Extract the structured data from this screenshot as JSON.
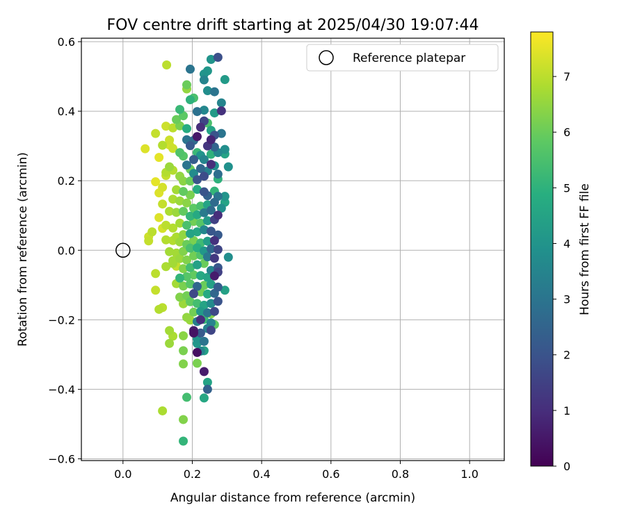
{
  "chart_data": {
    "type": "scatter",
    "title": "FOV centre drift starting at 2025/04/30 19:07:44",
    "xlabel": "Angular distance from reference (arcmin)",
    "ylabel": "Rotation from reference (arcmin)",
    "xlim": [
      -0.12,
      1.1
    ],
    "ylim": [
      -0.605,
      0.61
    ],
    "xticks": [
      0.0,
      0.2,
      0.4,
      0.6,
      0.8,
      1.0
    ],
    "xtick_labels": [
      "0.0",
      "0.2",
      "0.4",
      "0.6",
      "0.8",
      "1.0"
    ],
    "yticks": [
      -0.6,
      -0.4,
      -0.2,
      0.0,
      0.2,
      0.4,
      0.6
    ],
    "ytick_labels": [
      "−0.6",
      "−0.4",
      "−0.2",
      "0.0",
      "0.2",
      "0.4",
      "0.6"
    ],
    "grid": true,
    "legend": {
      "placement": "top-right",
      "entries": [
        "Reference platepar"
      ]
    },
    "reference_point": {
      "x": 0.0,
      "y": 0.0
    },
    "colorbar": {
      "label": "Hours from first FF file",
      "colormap": "viridis",
      "range": [
        0,
        7.8
      ],
      "ticks": [
        0,
        1,
        2,
        3,
        4,
        5,
        6,
        7
      ],
      "tick_labels": [
        "0",
        "1",
        "2",
        "3",
        "4",
        "5",
        "6",
        "7"
      ]
    },
    "series": [
      {
        "color_by": "hours",
        "points": [
          [
            0.126,
            0.533,
            7.0
          ],
          [
            0.064,
            0.292,
            7.4
          ],
          [
            0.104,
            0.267,
            7.5
          ],
          [
            0.094,
            0.197,
            7.5
          ],
          [
            0.104,
            0.165,
            7.4
          ],
          [
            0.114,
            0.181,
            7.3
          ],
          [
            0.124,
            0.215,
            7.1
          ],
          [
            0.134,
            0.303,
            7.3
          ],
          [
            0.144,
            0.293,
            7.2
          ],
          [
            0.094,
            0.336,
            7.1
          ],
          [
            0.124,
            0.357,
            7.2
          ],
          [
            0.144,
            0.352,
            7.0
          ],
          [
            0.114,
            0.302,
            6.9
          ],
          [
            0.134,
            0.317,
            7.2
          ],
          [
            0.104,
            0.094,
            7.4
          ],
          [
            0.114,
            0.063,
            7.3
          ],
          [
            0.084,
            0.053,
            7.0
          ],
          [
            0.074,
            0.039,
            7.2
          ],
          [
            0.074,
            0.027,
            7.1
          ],
          [
            0.124,
            0.03,
            6.9
          ],
          [
            0.094,
            -0.067,
            7.0
          ],
          [
            0.124,
            -0.047,
            6.8
          ],
          [
            0.144,
            -0.038,
            6.7
          ],
          [
            0.094,
            -0.115,
            7.1
          ],
          [
            0.114,
            -0.165,
            7.0
          ],
          [
            0.104,
            -0.17,
            6.9
          ],
          [
            0.134,
            -0.231,
            6.7
          ],
          [
            0.144,
            -0.247,
            6.8
          ],
          [
            0.134,
            -0.268,
            6.6
          ],
          [
            0.114,
            -0.462,
            6.8
          ],
          [
            0.174,
            -0.487,
            6.3
          ],
          [
            0.174,
            -0.549,
            5.1
          ],
          [
            0.184,
            -0.423,
            5.4
          ],
          [
            0.174,
            -0.327,
            6.3
          ],
          [
            0.174,
            -0.289,
            6.2
          ],
          [
            0.174,
            -0.246,
            6.4
          ],
          [
            0.214,
            -0.325,
            6.2
          ],
          [
            0.234,
            -0.349,
            0.6
          ],
          [
            0.234,
            -0.425,
            4.6
          ],
          [
            0.244,
            -0.4,
            2.4
          ],
          [
            0.244,
            -0.38,
            4.5
          ],
          [
            0.214,
            -0.255,
            4.0
          ],
          [
            0.224,
            -0.29,
            3.5
          ],
          [
            0.204,
            -0.238,
            0.4
          ],
          [
            0.224,
            -0.2,
            1.0
          ],
          [
            0.254,
            -0.183,
            6.3
          ],
          [
            0.264,
            -0.214,
            5.8
          ],
          [
            0.234,
            -0.262,
            3.0
          ],
          [
            0.294,
            -0.115,
            4.4
          ],
          [
            0.304,
            -0.02,
            3.8
          ],
          [
            0.274,
            -0.063,
            1.5
          ],
          [
            0.284,
            0.121,
            3.8
          ],
          [
            0.304,
            0.24,
            3.9
          ],
          [
            0.294,
            0.29,
            3.8
          ],
          [
            0.294,
            0.155,
            4.0
          ],
          [
            0.294,
            0.138,
            4.5
          ],
          [
            0.284,
            0.401,
            1.1
          ],
          [
            0.284,
            0.336,
            3.0
          ],
          [
            0.294,
            0.491,
            4.2
          ],
          [
            0.274,
            0.555,
            1.9
          ],
          [
            0.254,
            0.549,
            4.0
          ],
          [
            0.244,
            0.516,
            4.1
          ],
          [
            0.234,
            0.507,
            4.0
          ],
          [
            0.194,
            0.521,
            3.0
          ],
          [
            0.184,
            0.476,
            6.0
          ],
          [
            0.184,
            0.464,
            6.5
          ],
          [
            0.244,
            0.459,
            3.8
          ],
          [
            0.264,
            0.456,
            3.0
          ],
          [
            0.234,
            0.49,
            3.5
          ],
          [
            0.284,
            0.424,
            3.5
          ],
          [
            0.264,
            0.395,
            4.2
          ],
          [
            0.234,
            0.403,
            3.6
          ],
          [
            0.214,
            0.399,
            2.9
          ],
          [
            0.194,
            0.433,
            5.0
          ],
          [
            0.204,
            0.438,
            5.5
          ],
          [
            0.164,
            0.405,
            5.2
          ],
          [
            0.174,
            0.387,
            5.8
          ],
          [
            0.154,
            0.376,
            6.0
          ],
          [
            0.164,
            0.358,
            6.2
          ],
          [
            0.184,
            0.35,
            4.8
          ],
          [
            0.234,
            0.372,
            1.6
          ],
          [
            0.224,
            0.354,
            1.0
          ],
          [
            0.244,
            0.366,
            5.5
          ],
          [
            0.254,
            0.345,
            4.5
          ],
          [
            0.264,
            0.331,
            2.0
          ],
          [
            0.214,
            0.327,
            0.5
          ],
          [
            0.204,
            0.316,
            2.7
          ],
          [
            0.194,
            0.301,
            2.2
          ],
          [
            0.184,
            0.318,
            3.0
          ],
          [
            0.244,
            0.3,
            1.2
          ],
          [
            0.254,
            0.318,
            0.8
          ],
          [
            0.264,
            0.297,
            2.5
          ],
          [
            0.274,
            0.281,
            3.6
          ],
          [
            0.294,
            0.277,
            4.5
          ],
          [
            0.254,
            0.276,
            5.0
          ],
          [
            0.234,
            0.261,
            3.5
          ],
          [
            0.214,
            0.281,
            5.2
          ],
          [
            0.224,
            0.273,
            4.0
          ],
          [
            0.204,
            0.261,
            2.3
          ],
          [
            0.174,
            0.271,
            5.7
          ],
          [
            0.164,
            0.281,
            5.6
          ],
          [
            0.184,
            0.245,
            3.0
          ],
          [
            0.194,
            0.233,
            6.0
          ],
          [
            0.204,
            0.221,
            3.7
          ],
          [
            0.224,
            0.235,
            2.6
          ],
          [
            0.244,
            0.228,
            3.4
          ],
          [
            0.254,
            0.247,
            1.0
          ],
          [
            0.264,
            0.243,
            3.8
          ],
          [
            0.274,
            0.219,
            2.8
          ],
          [
            0.274,
            0.205,
            5.0
          ],
          [
            0.234,
            0.213,
            1.8
          ],
          [
            0.214,
            0.203,
            2.0
          ],
          [
            0.194,
            0.199,
            6.0
          ],
          [
            0.174,
            0.199,
            6.4
          ],
          [
            0.164,
            0.213,
            6.5
          ],
          [
            0.144,
            0.23,
            6.9
          ],
          [
            0.134,
            0.24,
            6.6
          ],
          [
            0.124,
            0.224,
            6.9
          ],
          [
            0.154,
            0.174,
            6.7
          ],
          [
            0.174,
            0.169,
            5.9
          ],
          [
            0.194,
            0.159,
            6.2
          ],
          [
            0.214,
            0.175,
            4.8
          ],
          [
            0.234,
            0.168,
            2.0
          ],
          [
            0.244,
            0.157,
            2.4
          ],
          [
            0.264,
            0.17,
            5.1
          ],
          [
            0.274,
            0.155,
            3.0
          ],
          [
            0.264,
            0.138,
            2.7
          ],
          [
            0.244,
            0.131,
            4.5
          ],
          [
            0.224,
            0.127,
            5.5
          ],
          [
            0.204,
            0.121,
            5.8
          ],
          [
            0.184,
            0.136,
            6.4
          ],
          [
            0.164,
            0.142,
            6.6
          ],
          [
            0.144,
            0.147,
            6.8
          ],
          [
            0.134,
            0.112,
            6.8
          ],
          [
            0.114,
            0.133,
            7.1
          ],
          [
            0.154,
            0.109,
            6.6
          ],
          [
            0.174,
            0.112,
            5.9
          ],
          [
            0.194,
            0.098,
            5.1
          ],
          [
            0.214,
            0.102,
            4.7
          ],
          [
            0.234,
            0.108,
            3.2
          ],
          [
            0.254,
            0.115,
            2.7
          ],
          [
            0.274,
            0.101,
            1.0
          ],
          [
            0.264,
            0.088,
            1.5
          ],
          [
            0.244,
            0.085,
            4.2
          ],
          [
            0.224,
            0.078,
            5.7
          ],
          [
            0.204,
            0.083,
            6.1
          ],
          [
            0.184,
            0.072,
            5.5
          ],
          [
            0.164,
            0.078,
            6.7
          ],
          [
            0.144,
            0.064,
            6.9
          ],
          [
            0.124,
            0.072,
            7.0
          ],
          [
            0.154,
            0.038,
            6.8
          ],
          [
            0.174,
            0.045,
            6.5
          ],
          [
            0.194,
            0.048,
            4.5
          ],
          [
            0.214,
            0.053,
            4.6
          ],
          [
            0.234,
            0.059,
            3.6
          ],
          [
            0.254,
            0.055,
            2.1
          ],
          [
            0.274,
            0.044,
            2.2
          ],
          [
            0.264,
            0.028,
            1.1
          ],
          [
            0.244,
            0.026,
            4.3
          ],
          [
            0.224,
            0.021,
            5.3
          ],
          [
            0.204,
            0.028,
            6.2
          ],
          [
            0.184,
            0.017,
            6.0
          ],
          [
            0.164,
            0.024,
            6.6
          ],
          [
            0.144,
            0.028,
            6.9
          ],
          [
            0.134,
            -0.004,
            6.7
          ],
          [
            0.154,
            -0.008,
            6.7
          ],
          [
            0.174,
            -0.003,
            6.3
          ],
          [
            0.194,
            0.006,
            5.5
          ],
          [
            0.214,
            0.007,
            4.9
          ],
          [
            0.234,
            -0.002,
            4.1
          ],
          [
            0.254,
            0.004,
            2.6
          ],
          [
            0.274,
            0.002,
            1.6
          ],
          [
            0.264,
            -0.023,
            1.3
          ],
          [
            0.244,
            -0.019,
            3.1
          ],
          [
            0.224,
            -0.014,
            5.6
          ],
          [
            0.204,
            -0.016,
            6.1
          ],
          [
            0.184,
            -0.028,
            6.3
          ],
          [
            0.164,
            -0.024,
            6.6
          ],
          [
            0.144,
            -0.03,
            6.7
          ],
          [
            0.154,
            -0.046,
            7.1
          ],
          [
            0.174,
            -0.053,
            6.3
          ],
          [
            0.194,
            -0.05,
            5.4
          ],
          [
            0.214,
            -0.042,
            4.4
          ],
          [
            0.234,
            -0.038,
            6.0
          ],
          [
            0.254,
            -0.058,
            3.5
          ],
          [
            0.274,
            -0.05,
            2.1
          ],
          [
            0.264,
            -0.074,
            0.6
          ],
          [
            0.244,
            -0.078,
            4.5
          ],
          [
            0.224,
            -0.073,
            4.7
          ],
          [
            0.204,
            -0.071,
            5.9
          ],
          [
            0.184,
            -0.076,
            5.7
          ],
          [
            0.164,
            -0.08,
            5.1
          ],
          [
            0.154,
            -0.096,
            6.7
          ],
          [
            0.174,
            -0.103,
            6.2
          ],
          [
            0.194,
            -0.097,
            5.7
          ],
          [
            0.214,
            -0.104,
            2.6
          ],
          [
            0.234,
            -0.101,
            6.0
          ],
          [
            0.254,
            -0.098,
            4.4
          ],
          [
            0.274,
            -0.106,
            2.3
          ],
          [
            0.264,
            -0.124,
            2.6
          ],
          [
            0.244,
            -0.126,
            4.7
          ],
          [
            0.224,
            -0.12,
            6.1
          ],
          [
            0.204,
            -0.125,
            1.7
          ],
          [
            0.184,
            -0.131,
            6.1
          ],
          [
            0.164,
            -0.135,
            6.3
          ],
          [
            0.174,
            -0.154,
            6.6
          ],
          [
            0.194,
            -0.148,
            5.9
          ],
          [
            0.214,
            -0.153,
            5.4
          ],
          [
            0.234,
            -0.158,
            4.5
          ],
          [
            0.254,
            -0.153,
            3.7
          ],
          [
            0.274,
            -0.147,
            2.0
          ],
          [
            0.264,
            -0.176,
            1.7
          ],
          [
            0.244,
            -0.18,
            3.0
          ],
          [
            0.224,
            -0.176,
            4.2
          ],
          [
            0.204,
            -0.178,
            6.1
          ],
          [
            0.184,
            -0.193,
            6.5
          ],
          [
            0.194,
            -0.201,
            6.6
          ],
          [
            0.214,
            -0.205,
            3.3
          ],
          [
            0.234,
            -0.199,
            5.2
          ],
          [
            0.254,
            -0.209,
            3.5
          ],
          [
            0.244,
            -0.225,
            3.4
          ],
          [
            0.224,
            -0.238,
            2.2
          ],
          [
            0.204,
            -0.231,
            0.6
          ],
          [
            0.214,
            -0.268,
            4.1
          ],
          [
            0.254,
            -0.23,
            1.6
          ],
          [
            0.214,
            -0.294,
            0.3
          ],
          [
            0.234,
            -0.289,
            4.4
          ]
        ]
      }
    ]
  }
}
